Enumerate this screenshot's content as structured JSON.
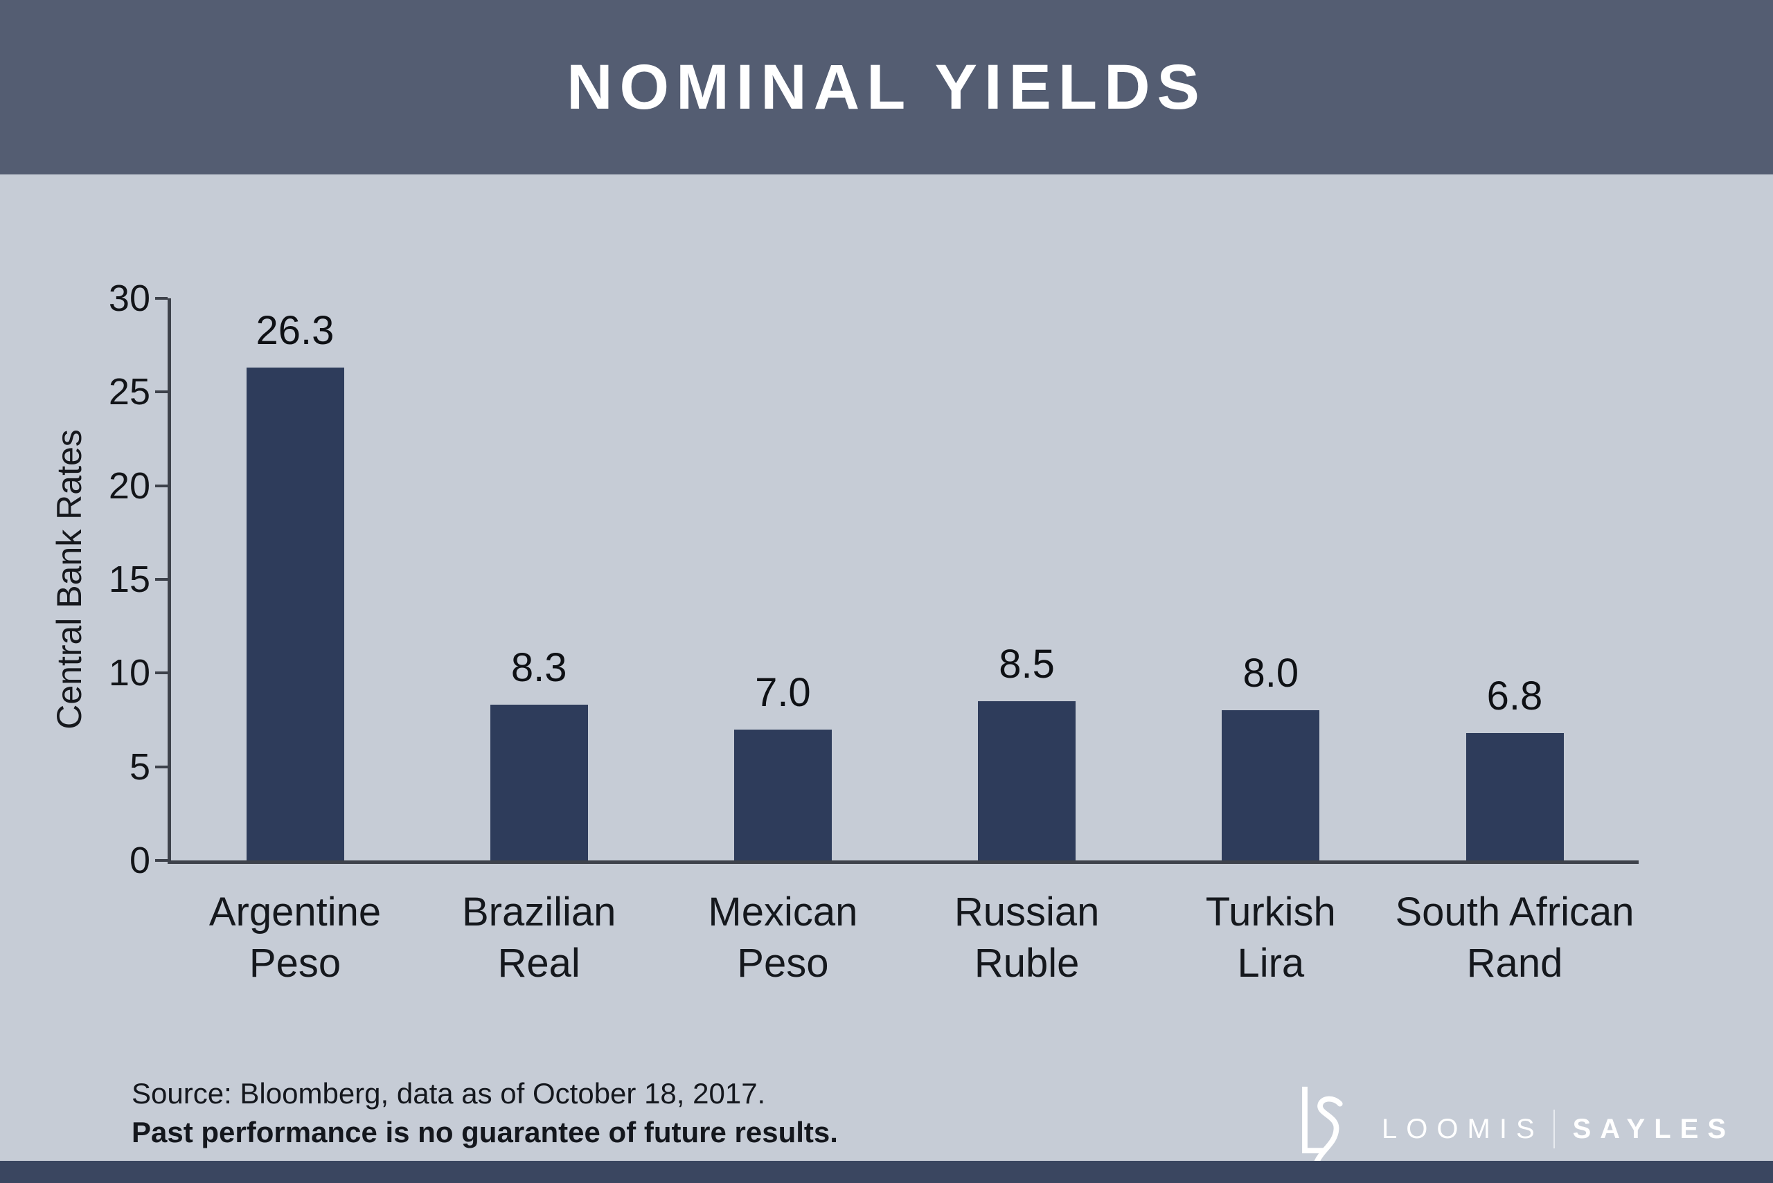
{
  "slide": {
    "title": "NOMINAL YIELDS",
    "source_line1": "Source: Bloomberg, data as of October 18, 2017.",
    "source_line2": "Past performance is no guarantee of future results.",
    "logo": {
      "monogram": "LS",
      "name_left": "LOOMIS",
      "name_right": "SAYLES"
    }
  },
  "colors": {
    "header_bg": "#545d72",
    "page_bg": "#c6ccd6",
    "bar": "#2e3c5b",
    "axis": "#3e424b",
    "footer_bar": "#3a4660",
    "text_dark": "#14171d",
    "logo_white": "#ffffff"
  },
  "chart_data": {
    "type": "bar",
    "title": "NOMINAL YIELDS",
    "categories": [
      "Argentine Peso",
      "Brazilian Real",
      "Mexican Peso",
      "Russian Ruble",
      "Turkish Lira",
      "South African Rand"
    ],
    "category_lines": [
      [
        "Argentine",
        "Peso"
      ],
      [
        "Brazilian",
        "Real"
      ],
      [
        "Mexican",
        "Peso"
      ],
      [
        "Russian",
        "Ruble"
      ],
      [
        "Turkish",
        "Lira"
      ],
      [
        "South African",
        "Rand"
      ]
    ],
    "values": [
      26.3,
      8.3,
      7.0,
      8.5,
      8.0,
      6.8
    ],
    "value_labels": [
      "26.3",
      "8.3",
      "7.0",
      "8.5",
      "8.0",
      "6.8"
    ],
    "xlabel": "",
    "ylabel": "Central Bank Rates",
    "ylim": [
      0,
      30
    ],
    "yticks": [
      0,
      5,
      10,
      15,
      20,
      25,
      30
    ],
    "grid": false,
    "legend": false,
    "bar_color": "#2e3c5b"
  }
}
